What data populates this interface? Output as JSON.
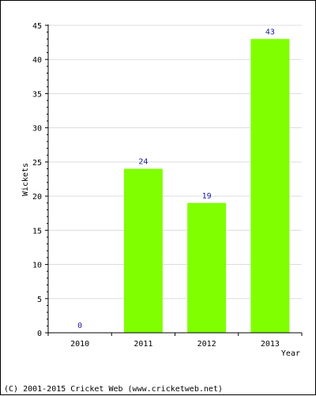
{
  "chart_data": {
    "type": "bar",
    "categories": [
      "2010",
      "2011",
      "2012",
      "2013"
    ],
    "values": [
      0,
      24,
      19,
      43
    ],
    "data_labels": [
      "0",
      "24",
      "19",
      "43"
    ],
    "xlabel": "Year",
    "ylabel": "Wickets",
    "ylim": [
      0,
      45
    ],
    "yticks": [
      0,
      5,
      10,
      15,
      20,
      25,
      30,
      35,
      40,
      45
    ],
    "ytick_labels": [
      "0",
      "5",
      "10",
      "15",
      "20",
      "25",
      "30",
      "35",
      "40",
      "45"
    ],
    "grid": true,
    "bar_color": "#80ff00",
    "label_color": "#1a1aa0"
  },
  "footer": "(C) 2001-2015 Cricket Web (www.cricketweb.net)"
}
